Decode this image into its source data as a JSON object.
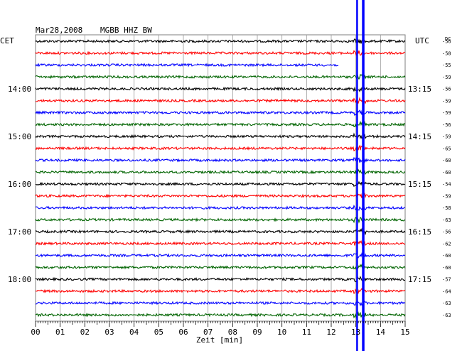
{
  "header": {
    "date": "Mar28,2008",
    "station": "MGBB HHZ BW"
  },
  "left_label": "CET",
  "right_label": "UTC",
  "dc_label": "DC",
  "chart_data": {
    "type": "line",
    "title": "Mar28,2008    MGBB HHZ BW",
    "xlabel": "Zeit [min]",
    "ylabel": "",
    "xlim": [
      0,
      15
    ],
    "x_ticks": [
      "00",
      "01",
      "02",
      "03",
      "04",
      "05",
      "06",
      "07",
      "08",
      "09",
      "10",
      "11",
      "12",
      "13",
      "14",
      "15"
    ],
    "trace_colors": [
      "#000000",
      "#ff0000",
      "#0000ff",
      "#006400"
    ],
    "hour_labels_cet": [
      {
        "row": 4,
        "label": "14:00"
      },
      {
        "row": 8,
        "label": "15:00"
      },
      {
        "row": 12,
        "label": "16:00"
      },
      {
        "row": 16,
        "label": "17:00"
      },
      {
        "row": 20,
        "label": "18:00"
      }
    ],
    "hour_labels_utc": [
      {
        "row": 4,
        "label": "13:15"
      },
      {
        "row": 8,
        "label": "14:15"
      },
      {
        "row": 12,
        "label": "15:15"
      },
      {
        "row": 16,
        "label": "16:15"
      },
      {
        "row": 20,
        "label": "17:15"
      }
    ],
    "dc_offsets": [
      -56,
      -58,
      -55,
      -59,
      -56,
      -59,
      -59,
      -56,
      -59,
      -65,
      -60,
      -60,
      -54,
      -59,
      -58,
      -63,
      -56,
      -62,
      -60,
      -60,
      -57,
      -64,
      -63,
      -63
    ],
    "partial_trace_end_min": [
      null,
      null,
      12.3,
      null,
      null,
      null,
      null,
      null,
      null,
      null,
      null,
      null,
      null,
      null,
      null,
      null,
      null,
      null,
      null,
      null,
      null,
      null,
      null,
      null
    ],
    "markers_min": [
      13.05,
      13.3
    ],
    "marker_color": "#0000ff"
  }
}
